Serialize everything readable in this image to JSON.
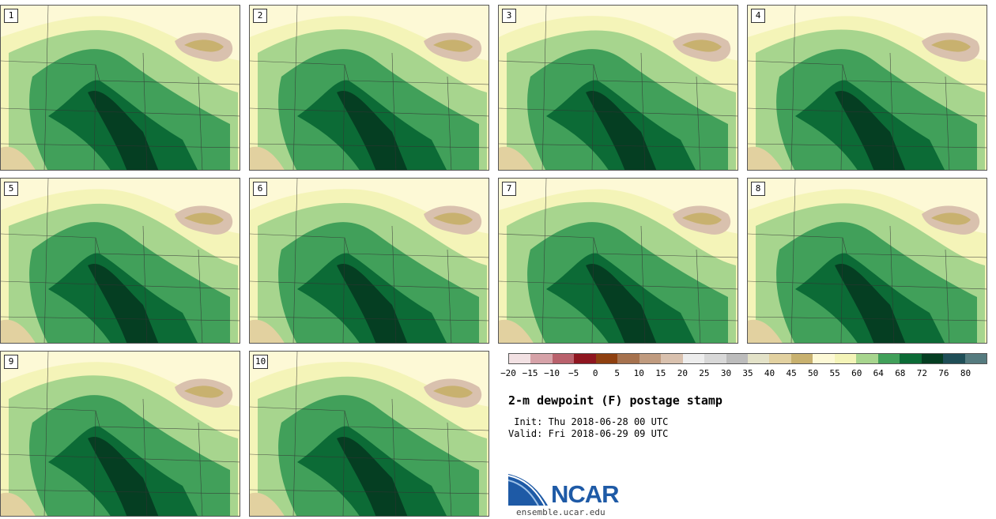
{
  "stamps": [
    {
      "label": "1"
    },
    {
      "label": "2"
    },
    {
      "label": "3"
    },
    {
      "label": "4"
    },
    {
      "label": "5"
    },
    {
      "label": "6"
    },
    {
      "label": "7"
    },
    {
      "label": "8"
    },
    {
      "label": "9"
    },
    {
      "label": "10"
    }
  ],
  "colorbar": {
    "colors": [
      "#f2e1e3",
      "#d6a2a8",
      "#b9616c",
      "#8f1620",
      "#8f4010",
      "#a6724e",
      "#c09b7f",
      "#d9c1ae",
      "#ededed",
      "#d8d8d8",
      "#bcbcbc",
      "#e3e2c8",
      "#e2d1a0",
      "#c8b16f",
      "#fdf9d6",
      "#f4f4b8",
      "#a7d58e",
      "#41a05a",
      "#0c6b36",
      "#053e22",
      "#1f4e57",
      "#557b7f"
    ],
    "tick_labels": [
      "-20",
      "-15",
      "-10",
      "-5",
      "0",
      "5",
      "10",
      "15",
      "20",
      "25",
      "30",
      "35",
      "40",
      "45",
      "50",
      "55",
      "60",
      "64",
      "68",
      "72",
      "76",
      "80"
    ]
  },
  "title": "2-m dewpoint (F) postage stamp",
  "init": " Init: Thu 2018-06-28 00 UTC",
  "valid": "Valid: Fri 2018-06-29 09 UTC",
  "logo": {
    "text": "NCAR",
    "url": "ensemble.ucar.edu"
  }
}
